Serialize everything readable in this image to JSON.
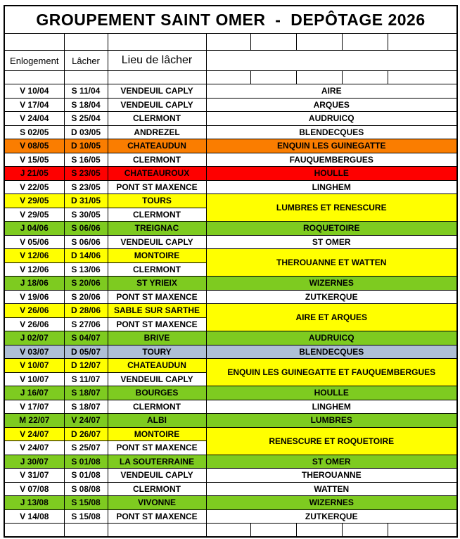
{
  "title": "GROUPEMENT SAINT OMER  -  DEPÔTAGE 2026",
  "columns": {
    "enlogement": "Enlogement",
    "lacher": "Lâcher",
    "lieu": "Lieu de lâcher"
  },
  "colors": {
    "white": "#FFFFFF",
    "orange": "#FA7D00",
    "red": "#FE0000",
    "yellow": "#FFFF00",
    "green": "#7ECB20",
    "blue": "#AEBFD5"
  },
  "rows": [
    {
      "enlogement": "V 10/04",
      "lacher": "S 11/04",
      "lieu": "VENDEUIL CAPLY",
      "destination": "AIRE",
      "row_color": "white"
    },
    {
      "enlogement": "V 17/04",
      "lacher": "S 18/04",
      "lieu": "VENDEUIL CAPLY",
      "destination": "ARQUES",
      "row_color": "white"
    },
    {
      "enlogement": "V 24/04",
      "lacher": "S 25/04",
      "lieu": "CLERMONT",
      "destination": "AUDRUICQ",
      "row_color": "white"
    },
    {
      "enlogement": "S 02/05",
      "lacher": "D 03/05",
      "lieu": "ANDREZEL",
      "destination": "BLENDECQUES",
      "row_color": "white"
    },
    {
      "enlogement": "V 08/05",
      "lacher": "D 10/05",
      "lieu": "CHATEAUDUN",
      "destination": "ENQUIN LES GUINEGATTE",
      "row_color": "orange"
    },
    {
      "enlogement": "V 15/05",
      "lacher": "S 16/05",
      "lieu": "CLERMONT",
      "destination": "FAUQUEMBERGUES",
      "row_color": "white"
    },
    {
      "enlogement": "J 21/05",
      "lacher": "S 23/05",
      "lieu": "CHATEAUROUX",
      "destination": "HOULLE",
      "row_color": "red"
    },
    {
      "enlogement": "V 22/05",
      "lacher": "S 23/05",
      "lieu": "PONT ST MAXENCE",
      "destination": "LINGHEM",
      "row_color": "white"
    },
    {
      "enlogement": "V 29/05",
      "lacher": "D 31/05",
      "lieu": "TOURS",
      "destination": "LUMBRES ET RENESCURE",
      "row_color": "yellow",
      "destination_color": "yellow",
      "destination_rowspan": 2
    },
    {
      "enlogement": "V 29/05",
      "lacher": "S 30/05",
      "lieu": "CLERMONT",
      "row_color": "white",
      "destination_merged_with_previous": true
    },
    {
      "enlogement": "J 04/06",
      "lacher": "S 06/06",
      "lieu": "TREIGNAC",
      "destination": "ROQUETOIRE",
      "row_color": "green"
    },
    {
      "enlogement": "V 05/06",
      "lacher": "S 06/06",
      "lieu": "VENDEUIL CAPLY",
      "destination": "ST OMER",
      "row_color": "white"
    },
    {
      "enlogement": "V 12/06",
      "lacher": "D 14/06",
      "lieu": "MONTOIRE",
      "destination": "THEROUANNE ET WATTEN",
      "row_color": "yellow",
      "destination_color": "yellow",
      "destination_rowspan": 2
    },
    {
      "enlogement": "V 12/06",
      "lacher": "S 13/06",
      "lieu": "CLERMONT",
      "row_color": "white",
      "destination_merged_with_previous": true
    },
    {
      "enlogement": "J 18/06",
      "lacher": "S 20/06",
      "lieu": "ST YRIEIX",
      "destination": "WIZERNES",
      "row_color": "green"
    },
    {
      "enlogement": "V 19/06",
      "lacher": "S 20/06",
      "lieu": "PONT ST MAXENCE",
      "destination": "ZUTKERQUE",
      "row_color": "white"
    },
    {
      "enlogement": "V 26/06",
      "lacher": "D 28/06",
      "lieu": "SABLE SUR SARTHE",
      "destination": "AIRE ET ARQUES",
      "row_color": "yellow",
      "destination_color": "yellow",
      "destination_rowspan": 2
    },
    {
      "enlogement": "V 26/06",
      "lacher": "S 27/06",
      "lieu": "PONT ST MAXENCE",
      "row_color": "white",
      "destination_merged_with_previous": true
    },
    {
      "enlogement": "J 02/07",
      "lacher": "S 04/07",
      "lieu": "BRIVE",
      "destination": "AUDRUICQ",
      "row_color": "green"
    },
    {
      "enlogement": "V 03/07",
      "lacher": "D 05/07",
      "lieu": "TOURY",
      "destination": "BLENDECQUES",
      "row_color": "blue"
    },
    {
      "enlogement": "V 10/07",
      "lacher": "D 12/07",
      "lieu": "CHATEAUDUN",
      "destination": "ENQUIN LES GUINEGATTE ET FAUQUEMBERGUES",
      "row_color": "yellow",
      "destination_color": "yellow",
      "destination_rowspan": 2
    },
    {
      "enlogement": "V 10/07",
      "lacher": "S 11/07",
      "lieu": "VENDEUIL CAPLY",
      "row_color": "white",
      "destination_merged_with_previous": true
    },
    {
      "enlogement": "J 16/07",
      "lacher": "S 18/07",
      "lieu": "BOURGES",
      "destination": "HOULLE",
      "row_color": "green"
    },
    {
      "enlogement": "V 17/07",
      "lacher": "S 18/07",
      "lieu": "CLERMONT",
      "destination": "LINGHEM",
      "row_color": "white"
    },
    {
      "enlogement": "M 22/07",
      "lacher": "V 24/07",
      "lieu": "ALBI",
      "destination": "LUMBRES",
      "row_color": "green"
    },
    {
      "enlogement": "V 24/07",
      "lacher": "D 26/07",
      "lieu": "MONTOIRE",
      "destination": "RENESCURE ET ROQUETOIRE",
      "row_color": "yellow",
      "destination_color": "yellow",
      "destination_rowspan": 2
    },
    {
      "enlogement": "V 24/07",
      "lacher": "S 25/07",
      "lieu": "PONT ST MAXENCE",
      "row_color": "white",
      "destination_merged_with_previous": true
    },
    {
      "enlogement": "J 30/07",
      "lacher": "S 01/08",
      "lieu": "LA SOUTERRAINE",
      "destination": "ST OMER",
      "row_color": "green"
    },
    {
      "enlogement": "V 31/07",
      "lacher": "S 01/08",
      "lieu": "VENDEUIL CAPLY",
      "destination": "THEROUANNE",
      "row_color": "white"
    },
    {
      "enlogement": "V 07/08",
      "lacher": "S 08/08",
      "lieu": "CLERMONT",
      "destination": "WATTEN",
      "row_color": "white"
    },
    {
      "enlogement": "J 13/08",
      "lacher": "S 15/08",
      "lieu": "VIVONNE",
      "destination": "WIZERNES",
      "row_color": "green"
    },
    {
      "enlogement": "V 14/08",
      "lacher": "S 15/08",
      "lieu": "PONT ST MAXENCE",
      "destination": "ZUTKERQUE",
      "row_color": "white"
    }
  ]
}
